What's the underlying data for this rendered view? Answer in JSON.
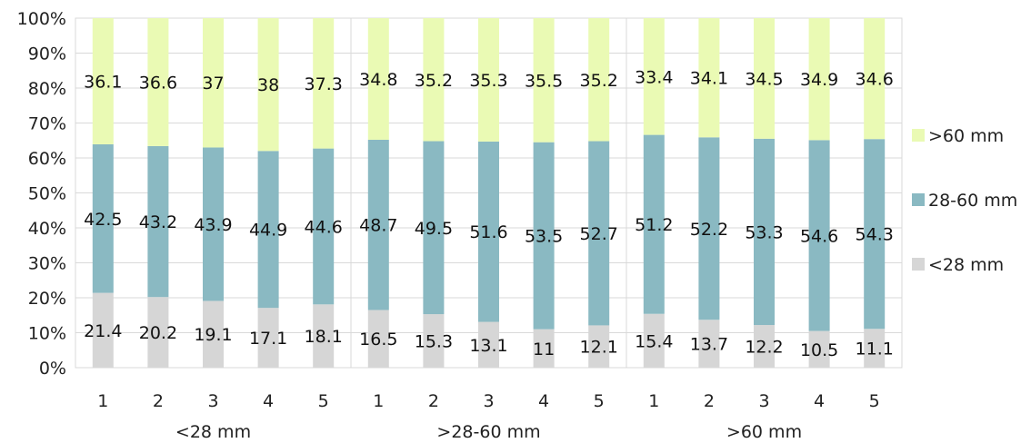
{
  "chart_data": {
    "type": "bar",
    "stacked": true,
    "normalized": true,
    "groups": [
      {
        "label": "<28 mm",
        "categories": [
          "1",
          "2",
          "3",
          "4",
          "5"
        ]
      },
      {
        "label": ">28-60 mm",
        "categories": [
          "1",
          "2",
          "3",
          "4",
          "5"
        ]
      },
      {
        "label": ">60 mm",
        "categories": [
          "1",
          "2",
          "3",
          "4",
          "5"
        ]
      }
    ],
    "series": [
      {
        "name": "<28 mm",
        "color": "#d6d6d6",
        "values": [
          21.4,
          20.2,
          19.1,
          17.1,
          18.1,
          16.5,
          15.3,
          13.1,
          11,
          12.1,
          15.4,
          13.7,
          12.2,
          10.5,
          11.1
        ]
      },
      {
        "name": "28-60 mm",
        "color": "#8ab9c2",
        "values": [
          42.5,
          43.2,
          43.9,
          44.9,
          44.6,
          48.7,
          49.5,
          51.6,
          53.5,
          52.7,
          51.2,
          52.2,
          53.3,
          54.6,
          54.3
        ]
      },
      {
        "name": ">60 mm",
        "color": "#eafab4",
        "values": [
          36.1,
          36.6,
          37,
          38,
          37.3,
          34.8,
          35.2,
          35.3,
          35.5,
          35.2,
          33.4,
          34.1,
          34.5,
          34.9,
          34.6
        ]
      }
    ],
    "y_ticks": [
      "0%",
      "10%",
      "20%",
      "30%",
      "40%",
      "50%",
      "60%",
      "70%",
      "80%",
      "90%",
      "100%"
    ],
    "ylim": [
      0,
      100
    ],
    "grid": true,
    "legend_position": "right"
  }
}
